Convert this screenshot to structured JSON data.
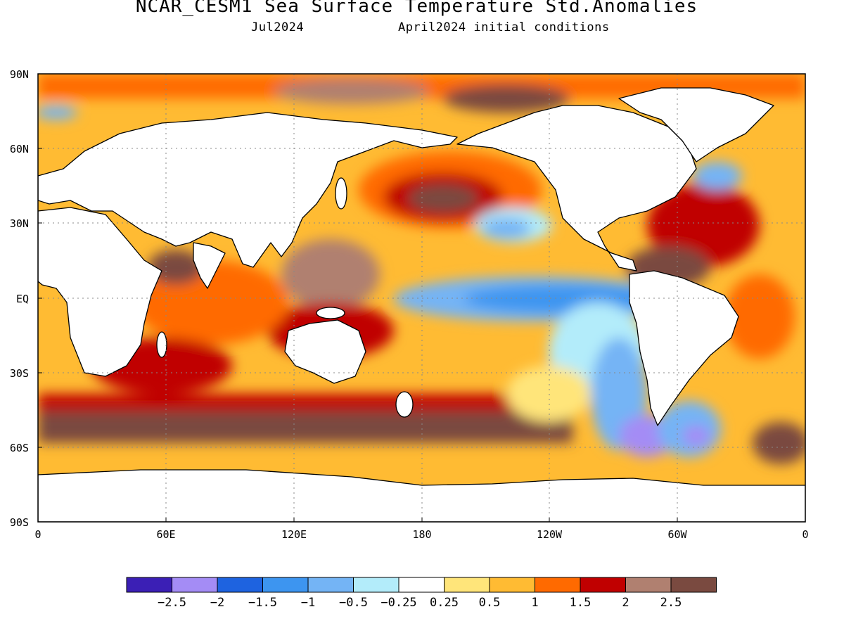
{
  "title": "NCAR_CESM1 Sea Surface Temperature Std.Anomalies",
  "subtitle_left": "Jul2024",
  "subtitle_right": "April2024 initial conditions",
  "map": {
    "lat_labels": [
      "90N",
      "60N",
      "30N",
      "EQ",
      "30S",
      "60S",
      "90S"
    ],
    "lon_labels": [
      "0",
      "60E",
      "120E",
      "180",
      "120W",
      "60W",
      "0"
    ],
    "grid": "dotted"
  },
  "colorbar": {
    "colors": [
      "#3b1fb5",
      "#a48cf5",
      "#1e63e0",
      "#3d95f0",
      "#74b4f5",
      "#b3ecfa",
      "#ffffff",
      "#ffe57a",
      "#ffbb33",
      "#ff6a00",
      "#c00000",
      "#b08070",
      "#7a4a40"
    ],
    "labels": [
      "−2.5",
      "−2",
      "−1.5",
      "−1",
      "−0.5",
      "−0.25",
      "0.25",
      "0.5",
      "1",
      "1.5",
      "2",
      "2.5"
    ]
  }
}
